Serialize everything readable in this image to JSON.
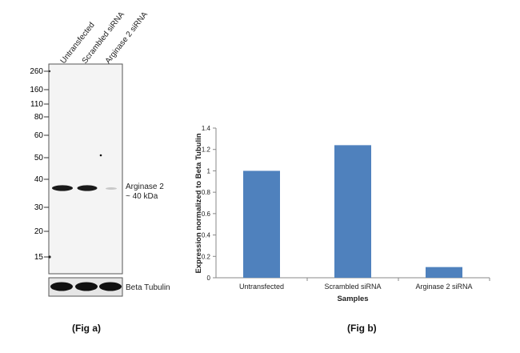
{
  "fig_a": {
    "caption": "(Fig a)",
    "lanes": [
      "Untransfected",
      "Scrambled siRNA",
      "Arginase 2 siRNA"
    ],
    "markers": [
      "260",
      "160",
      "110",
      "80",
      "60",
      "50",
      "40",
      "30",
      "20",
      "15"
    ],
    "band_label_line1": "Arginase 2",
    "band_label_line2": "~ 40 kDa",
    "loading_control_label": "Beta Tubulin"
  },
  "fig_b": {
    "caption": "(Fig b)"
  },
  "chart_data": {
    "type": "bar",
    "categories": [
      "Untransfected",
      "Scrambled siRNA",
      "Arginase 2 siRNA"
    ],
    "values": [
      1.0,
      1.24,
      0.1
    ],
    "title": "",
    "xlabel": "Samples",
    "ylabel": "Expression  normalized to Beta Tubulin",
    "ylim": [
      0,
      1.4
    ],
    "yticks": [
      "0",
      "0.2",
      "0.4",
      "0.6",
      "0.8",
      "1",
      "1.2",
      "1.4"
    ],
    "bar_color": "#4f81bd",
    "grid": false
  }
}
